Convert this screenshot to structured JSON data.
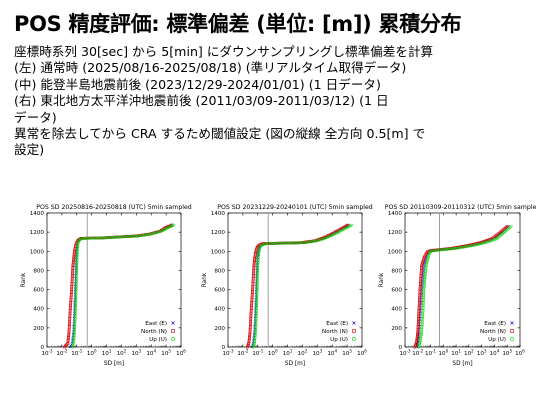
{
  "slide": {
    "title": "POS 精度評価: 標準偏差 (単位: [m]) 累積分布",
    "lines": [
      "座標時系列 30[sec] から 5[min] にダウンサンプリングし標準偏差を計算",
      "(左) 通常時 (2025/08/16-2025/08/18) (準リアルタイム取得データ)",
      "(中) 能登半島地震前後 (2023/12/29-2024/01/01) (1 日データ)",
      "(右) 東北地方太平洋沖地震前後 (2011/03/09-2011/03/12) (1 日",
      "データ)",
      "異常を除去してから CRA するため閾値設定 (図の縦線 全方向 0.5[m] で",
      "設定)"
    ]
  },
  "colors": {
    "east": "#0000d4",
    "north": "#d40000",
    "up": "#00d400",
    "threshold": "#888888"
  },
  "chart_data": [
    {
      "type": "scatter",
      "title": "POS SD 20250816-20250818 (UTC) 5min sampled",
      "xlabel": "SD [m]",
      "ylabel": "Rank",
      "x_scale": "log",
      "xlim": [
        0.001,
        1000000
      ],
      "ylim": [
        0,
        1400
      ],
      "x_ticks": [
        "10-3",
        "10-2",
        "10-1",
        "100",
        "101",
        "102",
        "103",
        "104",
        "105",
        "106"
      ],
      "y_ticks": [
        "0",
        "200",
        "400",
        "600",
        "800",
        "1000",
        "1200",
        "1400"
      ],
      "threshold_x": 0.5,
      "legend": [
        "East (E)",
        "North (N)",
        "Up (U)"
      ],
      "legend_position": "bottom-right",
      "series": [
        {
          "name": "East (E)",
          "marker": "x",
          "color": "#0000d4",
          "points": [
            [
              0.035,
              0
            ],
            [
              0.05,
              40
            ],
            [
              0.06,
              150
            ],
            [
              0.07,
              350
            ],
            [
              0.08,
              600
            ],
            [
              0.09,
              850
            ],
            [
              0.1,
              1000
            ],
            [
              0.11,
              1080
            ],
            [
              0.13,
              1110
            ],
            [
              0.15,
              1125
            ],
            [
              0.2,
              1135
            ],
            [
              5,
              1140
            ],
            [
              60,
              1150
            ],
            [
              1000,
              1160
            ],
            [
              8000,
              1180
            ],
            [
              40000,
              1210
            ],
            [
              100000,
              1250
            ],
            [
              300000,
              1280
            ]
          ]
        },
        {
          "name": "North (N)",
          "marker": "square",
          "color": "#d40000",
          "points": [
            [
              0.015,
              0
            ],
            [
              0.025,
              40
            ],
            [
              0.03,
              150
            ],
            [
              0.035,
              350
            ],
            [
              0.045,
              600
            ],
            [
              0.055,
              850
            ],
            [
              0.07,
              1000
            ],
            [
              0.09,
              1080
            ],
            [
              0.11,
              1110
            ],
            [
              0.15,
              1125
            ],
            [
              0.2,
              1135
            ],
            [
              5,
              1140
            ],
            [
              60,
              1150
            ],
            [
              1000,
              1160
            ],
            [
              8000,
              1180
            ],
            [
              40000,
              1210
            ],
            [
              100000,
              1250
            ],
            [
              300000,
              1280
            ]
          ]
        },
        {
          "name": "Up (U)",
          "marker": "circle",
          "color": "#00d400",
          "points": [
            [
              0.05,
              0
            ],
            [
              0.06,
              40
            ],
            [
              0.07,
              150
            ],
            [
              0.08,
              350
            ],
            [
              0.09,
              600
            ],
            [
              0.1,
              850
            ],
            [
              0.11,
              1000
            ],
            [
              0.12,
              1080
            ],
            [
              0.14,
              1110
            ],
            [
              0.17,
              1125
            ],
            [
              0.3,
              1135
            ],
            [
              8,
              1140
            ],
            [
              100,
              1150
            ],
            [
              1500,
              1160
            ],
            [
              10000,
              1180
            ],
            [
              50000,
              1210
            ],
            [
              150000,
              1250
            ],
            [
              400000,
              1280
            ]
          ]
        }
      ]
    },
    {
      "type": "scatter",
      "title": "POS SD 20231229-20240101 (UTC) 5min sampled",
      "xlabel": "SD [m]",
      "ylabel": "Rank",
      "x_scale": "log",
      "xlim": [
        0.001,
        1000000
      ],
      "ylim": [
        0,
        1400
      ],
      "x_ticks": [
        "10-3",
        "10-2",
        "10-1",
        "100",
        "101",
        "102",
        "103",
        "104",
        "105",
        "106"
      ],
      "y_ticks": [
        "0",
        "200",
        "400",
        "600",
        "800",
        "1000",
        "1200",
        "1400"
      ],
      "threshold_x": 0.5,
      "legend": [
        "East (E)",
        "North (N)",
        "Up (U)"
      ],
      "legend_position": "bottom-right",
      "series": [
        {
          "name": "East (E)",
          "marker": "x",
          "color": "#0000d4",
          "points": [
            [
              0.04,
              0
            ],
            [
              0.05,
              40
            ],
            [
              0.06,
              150
            ],
            [
              0.07,
              350
            ],
            [
              0.08,
              600
            ],
            [
              0.09,
              850
            ],
            [
              0.1,
              950
            ],
            [
              0.11,
              1000
            ],
            [
              0.13,
              1040
            ],
            [
              0.15,
              1060
            ],
            [
              0.3,
              1080
            ],
            [
              100,
              1090
            ],
            [
              800,
              1110
            ],
            [
              3000,
              1140
            ],
            [
              10000,
              1180
            ],
            [
              40000,
              1230
            ],
            [
              150000,
              1280
            ]
          ]
        },
        {
          "name": "North (N)",
          "marker": "square",
          "color": "#d40000",
          "points": [
            [
              0.02,
              0
            ],
            [
              0.025,
              40
            ],
            [
              0.03,
              150
            ],
            [
              0.035,
              350
            ],
            [
              0.045,
              600
            ],
            [
              0.055,
              850
            ],
            [
              0.065,
              950
            ],
            [
              0.075,
              1000
            ],
            [
              0.09,
              1040
            ],
            [
              0.11,
              1060
            ],
            [
              0.2,
              1080
            ],
            [
              80,
              1090
            ],
            [
              700,
              1110
            ],
            [
              2500,
              1140
            ],
            [
              9000,
              1180
            ],
            [
              35000,
              1230
            ],
            [
              130000,
              1280
            ]
          ]
        },
        {
          "name": "Up (U)",
          "marker": "circle",
          "color": "#00d400",
          "points": [
            [
              0.05,
              0
            ],
            [
              0.06,
              40
            ],
            [
              0.07,
              150
            ],
            [
              0.08,
              350
            ],
            [
              0.09,
              600
            ],
            [
              0.1,
              850
            ],
            [
              0.11,
              950
            ],
            [
              0.12,
              1000
            ],
            [
              0.14,
              1040
            ],
            [
              0.17,
              1060
            ],
            [
              0.4,
              1080
            ],
            [
              150,
              1090
            ],
            [
              1000,
              1110
            ],
            [
              4000,
              1140
            ],
            [
              15000,
              1180
            ],
            [
              60000,
              1230
            ],
            [
              250000,
              1280
            ]
          ]
        }
      ]
    },
    {
      "type": "scatter",
      "title": "POS SD 20110309-20110312 (UTC) 5min sampled",
      "xlabel": "SD [m]",
      "ylabel": "Rank",
      "x_scale": "log",
      "xlim": [
        0.001,
        1000000
      ],
      "ylim": [
        0,
        1400
      ],
      "x_ticks": [
        "10-3",
        "10-2",
        "10-1",
        "100",
        "101",
        "102",
        "103",
        "104",
        "105",
        "106"
      ],
      "y_ticks": [
        "0",
        "200",
        "400",
        "600",
        "800",
        "1000",
        "1200",
        "1400"
      ],
      "threshold_x": 0.5,
      "legend": [
        "East (E)",
        "North (N)",
        "Up (U)"
      ],
      "legend_position": "bottom-right",
      "series": [
        {
          "name": "East (E)",
          "marker": "x",
          "color": "#0000d4",
          "points": [
            [
              0.008,
              0
            ],
            [
              0.01,
              50
            ],
            [
              0.012,
              150
            ],
            [
              0.015,
              350
            ],
            [
              0.02,
              600
            ],
            [
              0.03,
              850
            ],
            [
              0.05,
              950
            ],
            [
              0.08,
              1000
            ],
            [
              0.2,
              1010
            ],
            [
              5,
              1030
            ],
            [
              100,
              1060
            ],
            [
              1000,
              1090
            ],
            [
              8000,
              1130
            ],
            [
              40000,
              1200
            ],
            [
              150000,
              1270
            ]
          ]
        },
        {
          "name": "North (N)",
          "marker": "square",
          "color": "#d40000",
          "points": [
            [
              0.006,
              0
            ],
            [
              0.008,
              50
            ],
            [
              0.01,
              150
            ],
            [
              0.012,
              350
            ],
            [
              0.015,
              600
            ],
            [
              0.02,
              850
            ],
            [
              0.035,
              950
            ],
            [
              0.06,
              1000
            ],
            [
              0.15,
              1010
            ],
            [
              4,
              1030
            ],
            [
              80,
              1060
            ],
            [
              800,
              1090
            ],
            [
              6000,
              1130
            ],
            [
              30000,
              1200
            ],
            [
              120000,
              1270
            ]
          ]
        },
        {
          "name": "Up (U)",
          "marker": "circle",
          "color": "#00d400",
          "points": [
            [
              0.012,
              0
            ],
            [
              0.015,
              50
            ],
            [
              0.02,
              150
            ],
            [
              0.025,
              350
            ],
            [
              0.03,
              600
            ],
            [
              0.045,
              850
            ],
            [
              0.07,
              950
            ],
            [
              0.1,
              1000
            ],
            [
              0.3,
              1010
            ],
            [
              10,
              1030
            ],
            [
              200,
              1060
            ],
            [
              2000,
              1090
            ],
            [
              15000,
              1130
            ],
            [
              60000,
              1200
            ],
            [
              250000,
              1270
            ]
          ]
        }
      ]
    }
  ]
}
